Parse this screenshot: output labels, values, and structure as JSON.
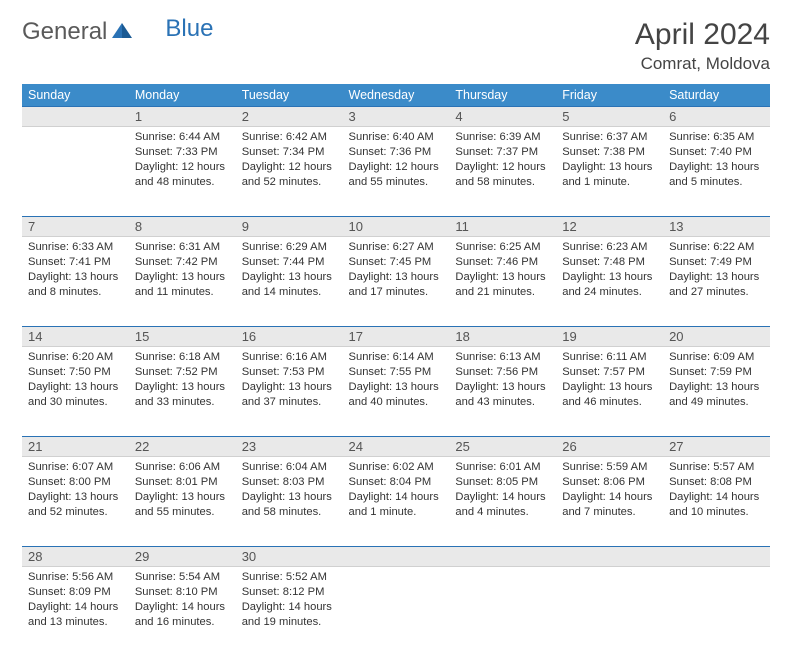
{
  "logo": {
    "text1": "General",
    "text2": "Blue"
  },
  "title": "April 2024",
  "location": "Comrat, Moldova",
  "colors": {
    "header_bg": "#3b8bc9",
    "header_text": "#ffffff",
    "daynum_bg": "#e9e9e9",
    "rule": "#2a72b5",
    "body_text": "#333333",
    "title_text": "#444444"
  },
  "weekdays": [
    "Sunday",
    "Monday",
    "Tuesday",
    "Wednesday",
    "Thursday",
    "Friday",
    "Saturday"
  ],
  "weeks": [
    {
      "nums": [
        "",
        "1",
        "2",
        "3",
        "4",
        "5",
        "6"
      ],
      "cells": [
        null,
        {
          "sunrise": "6:44 AM",
          "sunset": "7:33 PM",
          "daylight": "12 hours and 48 minutes."
        },
        {
          "sunrise": "6:42 AM",
          "sunset": "7:34 PM",
          "daylight": "12 hours and 52 minutes."
        },
        {
          "sunrise": "6:40 AM",
          "sunset": "7:36 PM",
          "daylight": "12 hours and 55 minutes."
        },
        {
          "sunrise": "6:39 AM",
          "sunset": "7:37 PM",
          "daylight": "12 hours and 58 minutes."
        },
        {
          "sunrise": "6:37 AM",
          "sunset": "7:38 PM",
          "daylight": "13 hours and 1 minute."
        },
        {
          "sunrise": "6:35 AM",
          "sunset": "7:40 PM",
          "daylight": "13 hours and 5 minutes."
        }
      ]
    },
    {
      "nums": [
        "7",
        "8",
        "9",
        "10",
        "11",
        "12",
        "13"
      ],
      "cells": [
        {
          "sunrise": "6:33 AM",
          "sunset": "7:41 PM",
          "daylight": "13 hours and 8 minutes."
        },
        {
          "sunrise": "6:31 AM",
          "sunset": "7:42 PM",
          "daylight": "13 hours and 11 minutes."
        },
        {
          "sunrise": "6:29 AM",
          "sunset": "7:44 PM",
          "daylight": "13 hours and 14 minutes."
        },
        {
          "sunrise": "6:27 AM",
          "sunset": "7:45 PM",
          "daylight": "13 hours and 17 minutes."
        },
        {
          "sunrise": "6:25 AM",
          "sunset": "7:46 PM",
          "daylight": "13 hours and 21 minutes."
        },
        {
          "sunrise": "6:23 AM",
          "sunset": "7:48 PM",
          "daylight": "13 hours and 24 minutes."
        },
        {
          "sunrise": "6:22 AM",
          "sunset": "7:49 PM",
          "daylight": "13 hours and 27 minutes."
        }
      ]
    },
    {
      "nums": [
        "14",
        "15",
        "16",
        "17",
        "18",
        "19",
        "20"
      ],
      "cells": [
        {
          "sunrise": "6:20 AM",
          "sunset": "7:50 PM",
          "daylight": "13 hours and 30 minutes."
        },
        {
          "sunrise": "6:18 AM",
          "sunset": "7:52 PM",
          "daylight": "13 hours and 33 minutes."
        },
        {
          "sunrise": "6:16 AM",
          "sunset": "7:53 PM",
          "daylight": "13 hours and 37 minutes."
        },
        {
          "sunrise": "6:14 AM",
          "sunset": "7:55 PM",
          "daylight": "13 hours and 40 minutes."
        },
        {
          "sunrise": "6:13 AM",
          "sunset": "7:56 PM",
          "daylight": "13 hours and 43 minutes."
        },
        {
          "sunrise": "6:11 AM",
          "sunset": "7:57 PM",
          "daylight": "13 hours and 46 minutes."
        },
        {
          "sunrise": "6:09 AM",
          "sunset": "7:59 PM",
          "daylight": "13 hours and 49 minutes."
        }
      ]
    },
    {
      "nums": [
        "21",
        "22",
        "23",
        "24",
        "25",
        "26",
        "27"
      ],
      "cells": [
        {
          "sunrise": "6:07 AM",
          "sunset": "8:00 PM",
          "daylight": "13 hours and 52 minutes."
        },
        {
          "sunrise": "6:06 AM",
          "sunset": "8:01 PM",
          "daylight": "13 hours and 55 minutes."
        },
        {
          "sunrise": "6:04 AM",
          "sunset": "8:03 PM",
          "daylight": "13 hours and 58 minutes."
        },
        {
          "sunrise": "6:02 AM",
          "sunset": "8:04 PM",
          "daylight": "14 hours and 1 minute."
        },
        {
          "sunrise": "6:01 AM",
          "sunset": "8:05 PM",
          "daylight": "14 hours and 4 minutes."
        },
        {
          "sunrise": "5:59 AM",
          "sunset": "8:06 PM",
          "daylight": "14 hours and 7 minutes."
        },
        {
          "sunrise": "5:57 AM",
          "sunset": "8:08 PM",
          "daylight": "14 hours and 10 minutes."
        }
      ]
    },
    {
      "nums": [
        "28",
        "29",
        "30",
        "",
        "",
        "",
        ""
      ],
      "cells": [
        {
          "sunrise": "5:56 AM",
          "sunset": "8:09 PM",
          "daylight": "14 hours and 13 minutes."
        },
        {
          "sunrise": "5:54 AM",
          "sunset": "8:10 PM",
          "daylight": "14 hours and 16 minutes."
        },
        {
          "sunrise": "5:52 AM",
          "sunset": "8:12 PM",
          "daylight": "14 hours and 19 minutes."
        },
        null,
        null,
        null,
        null
      ]
    }
  ],
  "labels": {
    "sunrise": "Sunrise:",
    "sunset": "Sunset:",
    "daylight": "Daylight:"
  }
}
